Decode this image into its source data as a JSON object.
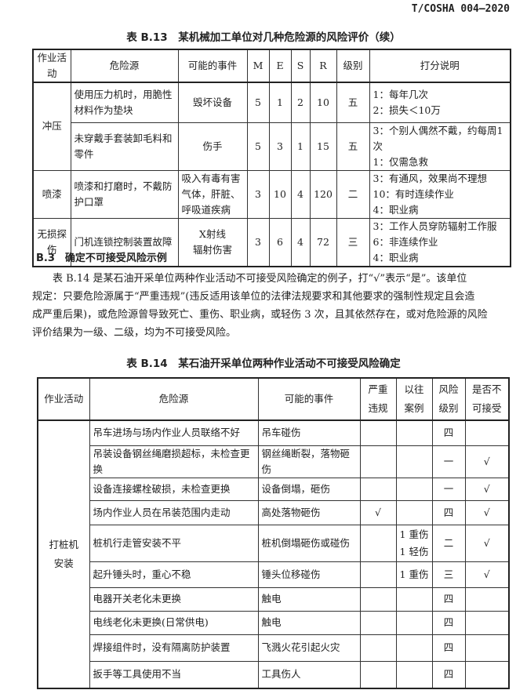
{
  "header": {
    "standard_no": "T/COSHA 004—2020"
  },
  "table13": {
    "title": "表 B.13　某机械加工单位对几种危险源的风险评价（续）",
    "headers": [
      "作业活动",
      "危险源",
      "可能的事件",
      "M",
      "E",
      "S",
      "R",
      "级别",
      "打分说明"
    ],
    "rows": [
      {
        "activity": "冲压",
        "hazard": "使用压力机时，用脆性材料作为垫块",
        "event": "毁坏设备",
        "M": "5",
        "E": "1",
        "S": "2",
        "R": "10",
        "level": "五",
        "notes": [
          "1：每年几次",
          "2：损失＜10万"
        ]
      },
      {
        "hazard": "未穿戴手套装卸毛料和零件",
        "event": "伤手",
        "M": "5",
        "E": "3",
        "S": "1",
        "R": "15",
        "level": "五",
        "notes": [
          "3：个别人偶然不戴，约每周1次",
          "1：仅需急救"
        ]
      },
      {
        "activity": "喷漆",
        "hazard": "喷漆和打磨时，不戴防护口罩",
        "event": "吸入有毒有害气体，肝脏、呼吸道疾病",
        "M": "3",
        "E": "10",
        "S": "4",
        "R": "120",
        "level": "二",
        "notes": [
          "3：有通风，效果尚不理想",
          "10：有时连续作业",
          "4：职业病"
        ]
      },
      {
        "activity": "无损探伤",
        "hazard": "门机连锁控制装置故障",
        "event": [
          "X射线",
          "辐射伤害"
        ],
        "M": "3",
        "E": "6",
        "S": "4",
        "R": "72",
        "level": "三",
        "notes": [
          "3：工作人员穿防辐射工作服",
          "6：非连续作业",
          "4：职业病"
        ]
      }
    ]
  },
  "section": {
    "heading": "B.3　确定不可接受风险示例",
    "paragraph": [
      "表 B.14 是某石油开采单位两种作业活动不可接受风险确定的例子，打“√”表示“是”。该单位",
      "规定：只要危险源属于“严重违规”(违反适用该单位的法律法规要求和其他要求的强制性规定且会造",
      "成严重后果)，或危险源曾导致死亡、重伤、职业病，或轻伤 3 次，且其依然存在，或对危险源的风险",
      "评价结果为一级、二级，均为不可接受风险。"
    ]
  },
  "table14": {
    "title": "表 B.14　某石油开采单位两种作业活动不可接受风险确定",
    "headers": [
      "作业活动",
      "危险源",
      "可能的事件",
      "严重违规",
      "以往案例",
      "风险级别",
      "是否不可接受"
    ],
    "activity": "打桩机安装",
    "rows": [
      {
        "hazard": "吊车进场与场内作业人员联络不好",
        "event": "吊车碰伤",
        "violation": "",
        "cases": "",
        "level": "四",
        "unacceptable": ""
      },
      {
        "hazard": "吊装设备钢丝绳磨损超标，未检查更换",
        "event": "钢丝绳断裂，落物砸伤",
        "violation": "",
        "cases": "",
        "level": "一",
        "unacceptable": "√"
      },
      {
        "hazard": "设备连接螺栓破损，未检查更换",
        "event": "设备倒塌，砸伤",
        "violation": "",
        "cases": "",
        "level": "一",
        "unacceptable": "√"
      },
      {
        "hazard": "场内作业人员在吊装范围内走动",
        "event": "高处落物砸伤",
        "violation": "√",
        "cases": "",
        "level": "四",
        "unacceptable": "√"
      },
      {
        "hazard": "桩机行走管安装不平",
        "event": "桩机倒塌砸伤或碰伤",
        "violation": "",
        "cases": "1 重伤\n1 轻伤",
        "level": "二",
        "unacceptable": "√"
      },
      {
        "hazard": "起升锤头时，重心不稳",
        "event": "锤头位移碰伤",
        "violation": "",
        "cases": "1 重伤",
        "level": "三",
        "unacceptable": "√"
      },
      {
        "hazard": "电器开关老化未更换",
        "event": "触电",
        "violation": "",
        "cases": "",
        "level": "四",
        "unacceptable": ""
      },
      {
        "hazard": "电线老化未更换(日常供电)",
        "event": "触电",
        "violation": "",
        "cases": "",
        "level": "四",
        "unacceptable": ""
      },
      {
        "hazard": "焊接组件时，没有隔离防护装置",
        "event": "飞溅火花引起火灾",
        "violation": "",
        "cases": "",
        "level": "四",
        "unacceptable": ""
      },
      {
        "hazard": "扳手等工具使用不当",
        "event": "工具伤人",
        "violation": "",
        "cases": "",
        "level": "四",
        "unacceptable": ""
      }
    ]
  }
}
